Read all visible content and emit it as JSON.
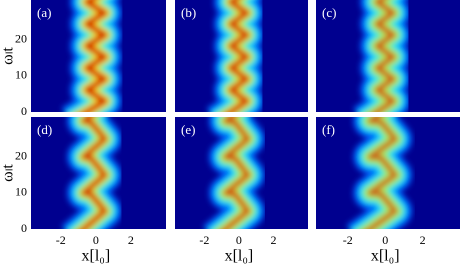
{
  "chart_data": [
    {
      "type": "heatmap",
      "label": "(a)",
      "colormap": "jet",
      "ylabel": "ωₗt",
      "ylim": [
        0,
        31
      ],
      "yticks": [
        0,
        10,
        20
      ],
      "xlim": [
        -3.7,
        4
      ]
    },
    {
      "type": "heatmap",
      "label": "(b)",
      "colormap": "jet",
      "ylim": [
        0,
        31
      ],
      "xlim": [
        -3.7,
        4
      ]
    },
    {
      "type": "heatmap",
      "label": "(c)",
      "colormap": "jet",
      "ylim": [
        0,
        31
      ],
      "xlim": [
        -3.7,
        4
      ]
    },
    {
      "type": "heatmap",
      "label": "(d)",
      "colormap": "jet",
      "ylabel": "ωₗt",
      "ylim": [
        0,
        31
      ],
      "yticks": [
        0,
        10,
        20
      ],
      "xlim": [
        -3.7,
        4
      ],
      "xticks": [
        -2,
        0,
        2
      ],
      "xlabel": "x[l₀]"
    },
    {
      "type": "heatmap",
      "label": "(e)",
      "colormap": "jet",
      "ylim": [
        0,
        31
      ],
      "xlim": [
        -3.7,
        4
      ],
      "xticks": [
        -2,
        0,
        2
      ],
      "xlabel": "x[l₀]"
    },
    {
      "type": "heatmap",
      "label": "(f)",
      "colormap": "jet",
      "ylim": [
        0,
        31
      ],
      "xlim": [
        -3.7,
        4
      ],
      "xticks": [
        -2,
        0,
        2
      ],
      "xlabel": "x[l₀]"
    }
  ]
}
